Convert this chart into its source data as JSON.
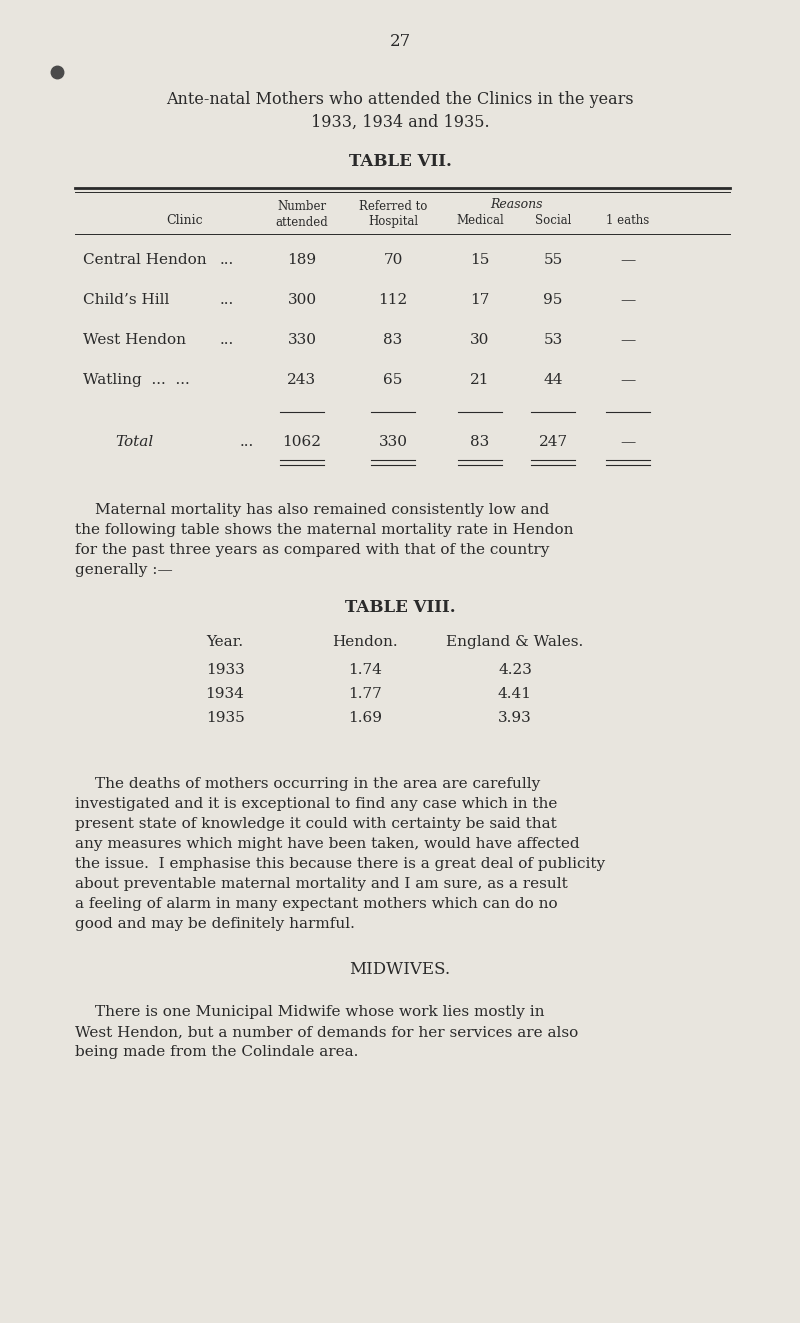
{
  "page_number": "27",
  "bg_color": "#e8e5de",
  "text_color": "#2a2a2a",
  "intro_line1": "Ante-natal Mothers who attended the Clinics in the years",
  "intro_line2": "1933, 1934 and 1935.",
  "table7_title": "TABLE VII.",
  "table7_rows": [
    [
      "Central Hendon",
      "...",
      "189",
      "70",
      "15",
      "55",
      "—"
    ],
    [
      "Child’s Hill",
      "...",
      "300",
      "112",
      "17",
      "95",
      "—"
    ],
    [
      "West Hendon",
      "...",
      "330",
      "83",
      "30",
      "53",
      "—"
    ],
    [
      "Watling  ...  ...",
      "",
      "243",
      "65",
      "21",
      "44",
      "—"
    ]
  ],
  "table7_total_label": "Total",
  "table7_total_values": [
    "1062",
    "330",
    "83",
    "247",
    "—"
  ],
  "paragraph1_lines": [
    "Maternal mortality has also remained consistently low and",
    "the following table shows the maternal mortality rate in Hendon",
    "for the past three years as compared with that of the country",
    "generally :—"
  ],
  "table8_title": "TABLE VIII.",
  "table8_headers": [
    "Year.",
    "Hendon.",
    "England & Wales."
  ],
  "table8_rows": [
    [
      "1933",
      "1.74",
      "4.23"
    ],
    [
      "1934",
      "1.77",
      "4.41"
    ],
    [
      "1935",
      "1.69",
      "3.93"
    ]
  ],
  "paragraph2_lines": [
    "The deaths of mothers occurring in the area are carefully",
    "investigated and it is exceptional to find any case which in the",
    "present state of knowledge it could with certainty be said that",
    "any measures which might have been taken, would have affected",
    "the issue.  I emphasise this because there is a great deal of publicity",
    "about preventable maternal mortality and I am sure, as a result",
    "a feeling of alarm in many expectant mothers which can do no",
    "good and may be definitely harmful."
  ],
  "midwives_title": "MIDWIVES.",
  "midwives_lines": [
    "There is one Municipal Midwife whose work lies mostly in",
    "West Hendon, but a number of demands for her services are also",
    "being made from the Colindale area."
  ]
}
